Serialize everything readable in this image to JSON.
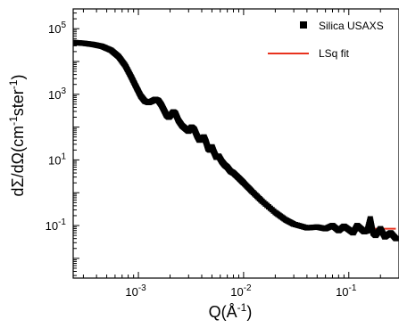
{
  "chart_data": {
    "type": "scatter",
    "xscale": "log",
    "yscale": "log",
    "xlim": [
      0.00024,
      0.3
    ],
    "ylim": [
      0.0025,
      400000
    ],
    "xticks": [
      {
        "value": 0.001,
        "base": "10",
        "exp": "-3"
      },
      {
        "value": 0.01,
        "base": "10",
        "exp": "-2"
      },
      {
        "value": 0.1,
        "base": "10",
        "exp": "-1"
      }
    ],
    "yticks": [
      {
        "value": 100000,
        "base": "10",
        "exp": "5"
      },
      {
        "value": 1000,
        "base": "10",
        "exp": "3"
      },
      {
        "value": 10,
        "base": "10",
        "exp": "1"
      },
      {
        "value": 0.1,
        "base": "10",
        "exp": "-1"
      }
    ],
    "xlabel": {
      "pre": "Q(Å",
      "sup": "-1",
      "post": ")"
    },
    "ylabel": {
      "main": "dΣ/dΩ(cm",
      "sup1": "-1",
      "mid": "ster",
      "sup2": "-1",
      "post": ")"
    },
    "legend": {
      "position": "top-right",
      "entries": [
        {
          "label": "Silica USAXS",
          "marker": "square",
          "color": "#000000"
        },
        {
          "label": "LSq fit",
          "marker": "line",
          "color": "#e8321e"
        }
      ]
    },
    "series": [
      {
        "name": "Silica USAXS",
        "style": "markers",
        "color": "#000000",
        "x": [
          0.00024,
          0.0003,
          0.00037,
          0.00045,
          0.00055,
          0.00065,
          0.00075,
          0.00085,
          0.00095,
          0.00105,
          0.00115,
          0.00125,
          0.00135,
          0.00145,
          0.00155,
          0.00165,
          0.00175,
          0.00185,
          0.00195,
          0.00205,
          0.00215,
          0.00225,
          0.0024,
          0.0026,
          0.0028,
          0.003,
          0.0032,
          0.0034,
          0.0036,
          0.0038,
          0.004,
          0.0042,
          0.0044,
          0.0046,
          0.0048,
          0.005,
          0.0052,
          0.0055,
          0.0058,
          0.0062,
          0.0066,
          0.007,
          0.0075,
          0.008,
          0.009,
          0.01,
          0.012,
          0.015,
          0.02,
          0.025,
          0.03,
          0.04,
          0.05,
          0.06,
          0.07,
          0.08,
          0.09,
          0.1,
          0.11,
          0.12,
          0.13,
          0.14,
          0.15,
          0.16,
          0.17,
          0.18,
          0.2,
          0.22,
          0.25,
          0.28
        ],
        "y": [
          38000,
          36000,
          33000,
          29000,
          22000,
          14000,
          7500,
          3500,
          1700,
          900,
          620,
          560,
          620,
          700,
          640,
          480,
          330,
          230,
          200,
          240,
          290,
          260,
          160,
          110,
          90,
          75,
          100,
          85,
          55,
          40,
          45,
          50,
          35,
          22,
          20,
          25,
          18,
          12,
          13,
          9,
          7,
          6,
          4.5,
          4,
          2.8,
          2,
          1.1,
          0.55,
          0.25,
          0.15,
          0.11,
          0.085,
          0.09,
          0.08,
          0.1,
          0.07,
          0.095,
          0.075,
          0.06,
          0.1,
          0.08,
          0.065,
          0.07,
          0.16,
          0.06,
          0.05,
          0.08,
          0.045,
          0.06,
          0.04
        ]
      },
      {
        "name": "LSq fit",
        "style": "line",
        "color": "#e8321e",
        "x": [
          0.00024,
          0.0003,
          0.00037,
          0.00045,
          0.00055,
          0.00065,
          0.00075,
          0.00085,
          0.00095,
          0.00105,
          0.00115,
          0.00125,
          0.00135,
          0.00145,
          0.00155,
          0.00165,
          0.00175,
          0.00185,
          0.00195,
          0.00205,
          0.00215,
          0.00225,
          0.0024,
          0.0026,
          0.0028,
          0.003,
          0.0032,
          0.0034,
          0.0036,
          0.0038,
          0.004,
          0.0042,
          0.0044,
          0.0046,
          0.0048,
          0.005,
          0.0052,
          0.0055,
          0.0058,
          0.0062,
          0.0066,
          0.007,
          0.0075,
          0.008,
          0.009,
          0.01,
          0.012,
          0.015,
          0.02,
          0.025,
          0.03,
          0.04,
          0.05,
          0.07,
          0.1,
          0.15,
          0.2,
          0.28
        ],
        "y": [
          38000,
          36000,
          33000,
          29000,
          22000,
          14000,
          7500,
          3500,
          1700,
          900,
          620,
          560,
          620,
          700,
          640,
          480,
          330,
          230,
          200,
          240,
          290,
          260,
          160,
          110,
          90,
          75,
          100,
          85,
          55,
          40,
          45,
          50,
          35,
          22,
          20,
          25,
          18,
          12,
          13,
          9,
          7,
          6,
          4.5,
          4,
          2.8,
          2,
          1.1,
          0.55,
          0.25,
          0.15,
          0.11,
          0.09,
          0.085,
          0.08,
          0.08,
          0.08,
          0.08,
          0.08
        ]
      }
    ]
  }
}
